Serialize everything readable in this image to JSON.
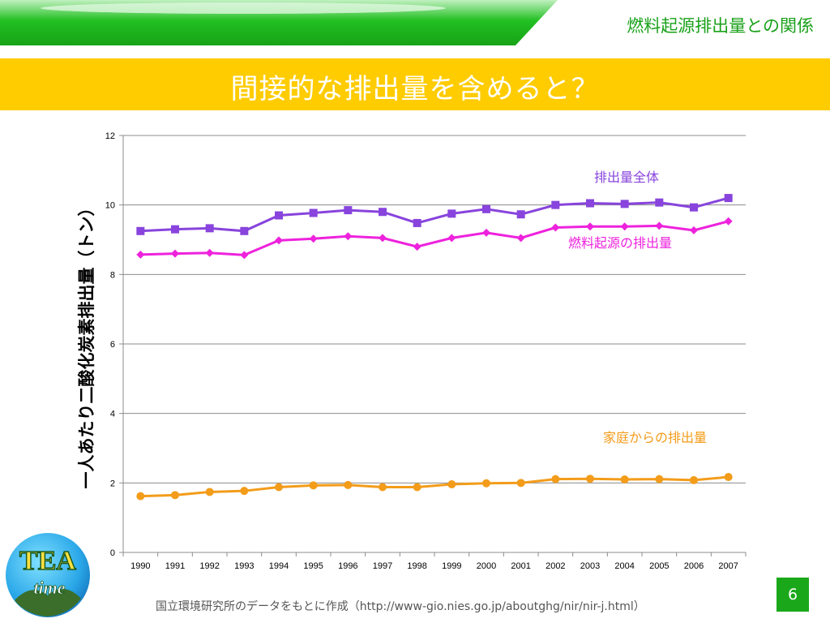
{
  "header": {
    "title": "燃料起源排出量との関係"
  },
  "banner": {
    "title": "間接的な排出量を含めると？"
  },
  "footer": {
    "source": "国立環境研究所のデータをもとに作成（http://www-gio.nies.go.jp/aboutghg/nir/nir-j.html）",
    "page_number": "6"
  },
  "logo": {
    "line1": "TEA",
    "line2": "time"
  },
  "colors": {
    "green": "#1aa81a",
    "yellow": "#ffcc00",
    "purple": "#8844dd",
    "magenta": "#ee22dd",
    "orange": "#f39c1a"
  },
  "chart_data": {
    "type": "line",
    "ylabel": "一人あたり二酸化炭素排出量（トン）",
    "xlabel": "",
    "x": [
      "1990",
      "1991",
      "1992",
      "1993",
      "1994",
      "1995",
      "1996",
      "1997",
      "1998",
      "1999",
      "2000",
      "2001",
      "2002",
      "2003",
      "2004",
      "2005",
      "2006",
      "2007"
    ],
    "ylim": [
      0,
      12
    ],
    "yticks": [
      0,
      2,
      4,
      6,
      8,
      10,
      12
    ],
    "grid": true,
    "series": [
      {
        "name": "排出量全体",
        "color": "#8844dd",
        "marker": "square",
        "values": [
          9.25,
          9.3,
          9.33,
          9.25,
          9.7,
          9.77,
          9.85,
          9.8,
          9.48,
          9.75,
          9.88,
          9.73,
          10.0,
          10.05,
          10.03,
          10.07,
          9.93,
          10.2
        ]
      },
      {
        "name": "燃料起源の排出量",
        "color": "#ee22dd",
        "marker": "diamond",
        "values": [
          8.57,
          8.6,
          8.62,
          8.56,
          8.98,
          9.03,
          9.1,
          9.05,
          8.8,
          9.05,
          9.2,
          9.05,
          9.35,
          9.38,
          9.38,
          9.4,
          9.27,
          9.53
        ]
      },
      {
        "name": "家庭からの排出量",
        "color": "#f39c1a",
        "marker": "circle",
        "values": [
          1.62,
          1.65,
          1.74,
          1.77,
          1.88,
          1.93,
          1.94,
          1.88,
          1.88,
          1.96,
          1.99,
          2.0,
          2.11,
          2.12,
          2.1,
          2.11,
          2.08,
          2.17
        ]
      }
    ]
  }
}
